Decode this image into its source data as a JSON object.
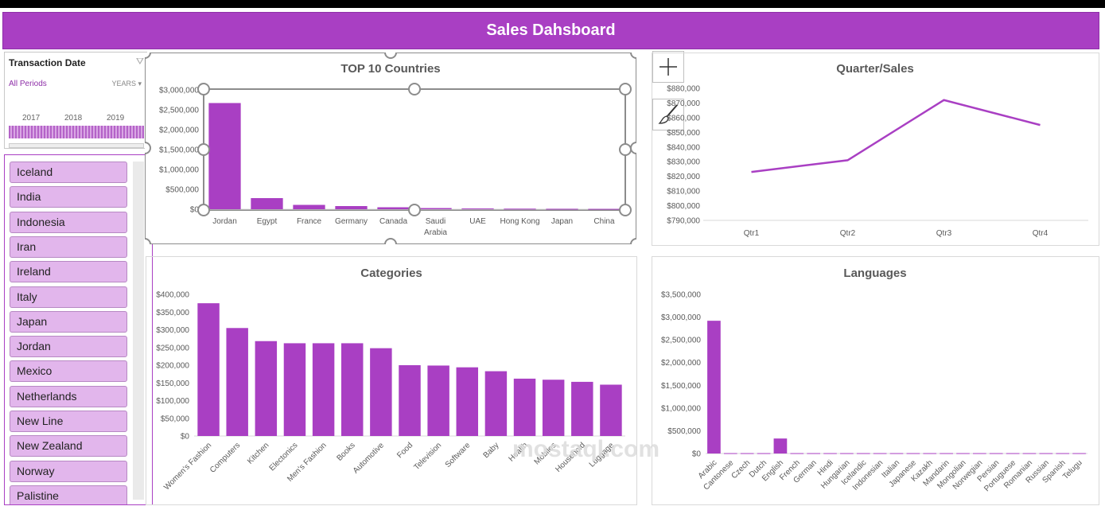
{
  "header": {
    "title": "Sales Dahsboard"
  },
  "timeline": {
    "title": "Transaction Date",
    "period_label": "All Periods",
    "level_label": "YEARS",
    "years": [
      "2017",
      "2018",
      "2019"
    ]
  },
  "slicer": {
    "items": [
      "Iceland",
      "India",
      "Indonesia",
      "Iran",
      "Ireland",
      "Italy",
      "Japan",
      "Jordan",
      "Mexico",
      "Netherlands",
      "New Line",
      "New Zealand",
      "Norway",
      "Palistine"
    ]
  },
  "watermark": {
    "text": "mostaql.com"
  },
  "colors": {
    "accent": "#a93fc3"
  },
  "chart_data": [
    {
      "id": "top-countries",
      "type": "bar",
      "title": "TOP 10 Countries",
      "categories": [
        "Jordan",
        "Egypt",
        "France",
        "Germany",
        "Canada",
        "Saudi Arabia",
        "UAE",
        "Hong Kong",
        "Japan",
        "China"
      ],
      "values": [
        2670000,
        280000,
        110000,
        80000,
        50000,
        30000,
        20000,
        15000,
        12000,
        10000
      ],
      "ylim": [
        0,
        3000000
      ],
      "yticks": [
        "$0",
        "$500,000",
        "$1,000,000",
        "$1,500,000",
        "$2,000,000",
        "$2,500,000",
        "$3,000,000"
      ],
      "grid": false
    },
    {
      "id": "quarter-sales",
      "type": "line",
      "title": "Quarter/Sales",
      "categories": [
        "Qtr1",
        "Qtr2",
        "Qtr3",
        "Qtr4"
      ],
      "values": [
        823000,
        831000,
        872000,
        855000
      ],
      "ylim": [
        790000,
        880000
      ],
      "yticks": [
        "$790,000",
        "$800,000",
        "$810,000",
        "$820,000",
        "$830,000",
        "$840,000",
        "$850,000",
        "$860,000",
        "$870,000",
        "$880,000"
      ],
      "grid": false
    },
    {
      "id": "categories",
      "type": "bar",
      "title": "Categories",
      "categories": [
        "Women's Fashion",
        "Computers",
        "Kitchen",
        "Electonics",
        "Men's Fashion",
        "Books",
        "Automotive",
        "Food",
        "Television",
        "Software",
        "Baby",
        "Health",
        "Mobiles",
        "Household",
        "Luggage"
      ],
      "values": [
        375000,
        305000,
        268000,
        262000,
        262000,
        262000,
        248000,
        200000,
        199000,
        194000,
        183000,
        162000,
        159000,
        153000,
        145000
      ],
      "ylim": [
        0,
        400000
      ],
      "yticks": [
        "$0",
        "$50,000",
        "$100,000",
        "$150,000",
        "$200,000",
        "$250,000",
        "$300,000",
        "$350,000",
        "$400,000"
      ],
      "grid": false
    },
    {
      "id": "languages",
      "type": "bar",
      "title": "Languages",
      "categories": [
        "Arabic",
        "Cantonese",
        "Czech",
        "Dutch",
        "English",
        "French",
        "German",
        "Hindi",
        "Hungarian",
        "Icelandic",
        "Indonesian",
        "Italian",
        "Japanese",
        "Kazakh",
        "Mandarin",
        "Mongolian",
        "Norwegian",
        "Persian",
        "Portuguese",
        "Romanian",
        "Russian",
        "Spanish",
        "Telugu"
      ],
      "values": [
        2920000,
        8000,
        8000,
        8000,
        330000,
        8000,
        8000,
        8000,
        8000,
        8000,
        8000,
        8000,
        8000,
        8000,
        8000,
        8000,
        8000,
        8000,
        8000,
        8000,
        8000,
        8000,
        8000
      ],
      "ylim": [
        0,
        3500000
      ],
      "yticks": [
        "$0",
        "$500,000",
        "$1,000,000",
        "$1,500,000",
        "$2,000,000",
        "$2,500,000",
        "$3,000,000",
        "$3,500,000"
      ],
      "grid": false
    }
  ]
}
